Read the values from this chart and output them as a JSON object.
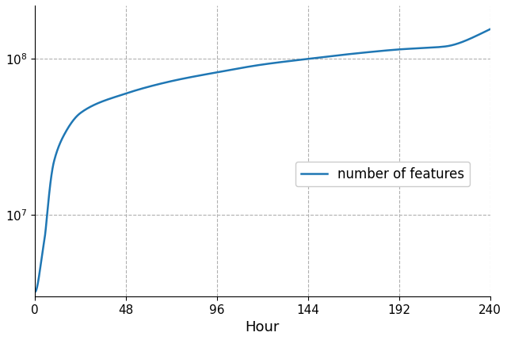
{
  "title": "",
  "xlabel": "Hour",
  "ylabel": "",
  "legend_label": "number of features",
  "line_color": "#1f77b4",
  "line_width": 1.8,
  "grid_color": "#b0b0b0",
  "grid_style": "--",
  "background_color": "#ffffff",
  "x_ticks": [
    0,
    48,
    96,
    144,
    192,
    240
  ],
  "xlim": [
    0,
    240
  ],
  "ylim": [
    3000000.0,
    220000000.0
  ],
  "key_points": {
    "x": [
      0,
      5,
      10,
      15,
      24,
      48,
      72,
      96,
      120,
      144,
      168,
      192,
      216,
      240
    ],
    "y": [
      3200000.0,
      7000000.0,
      22000000.0,
      32000000.0,
      45000000.0,
      60000000.0,
      72000000.0,
      82000000.0,
      92000000.0,
      100000000.0,
      108000000.0,
      115000000.0,
      120000000.0,
      155000000.0
    ]
  }
}
